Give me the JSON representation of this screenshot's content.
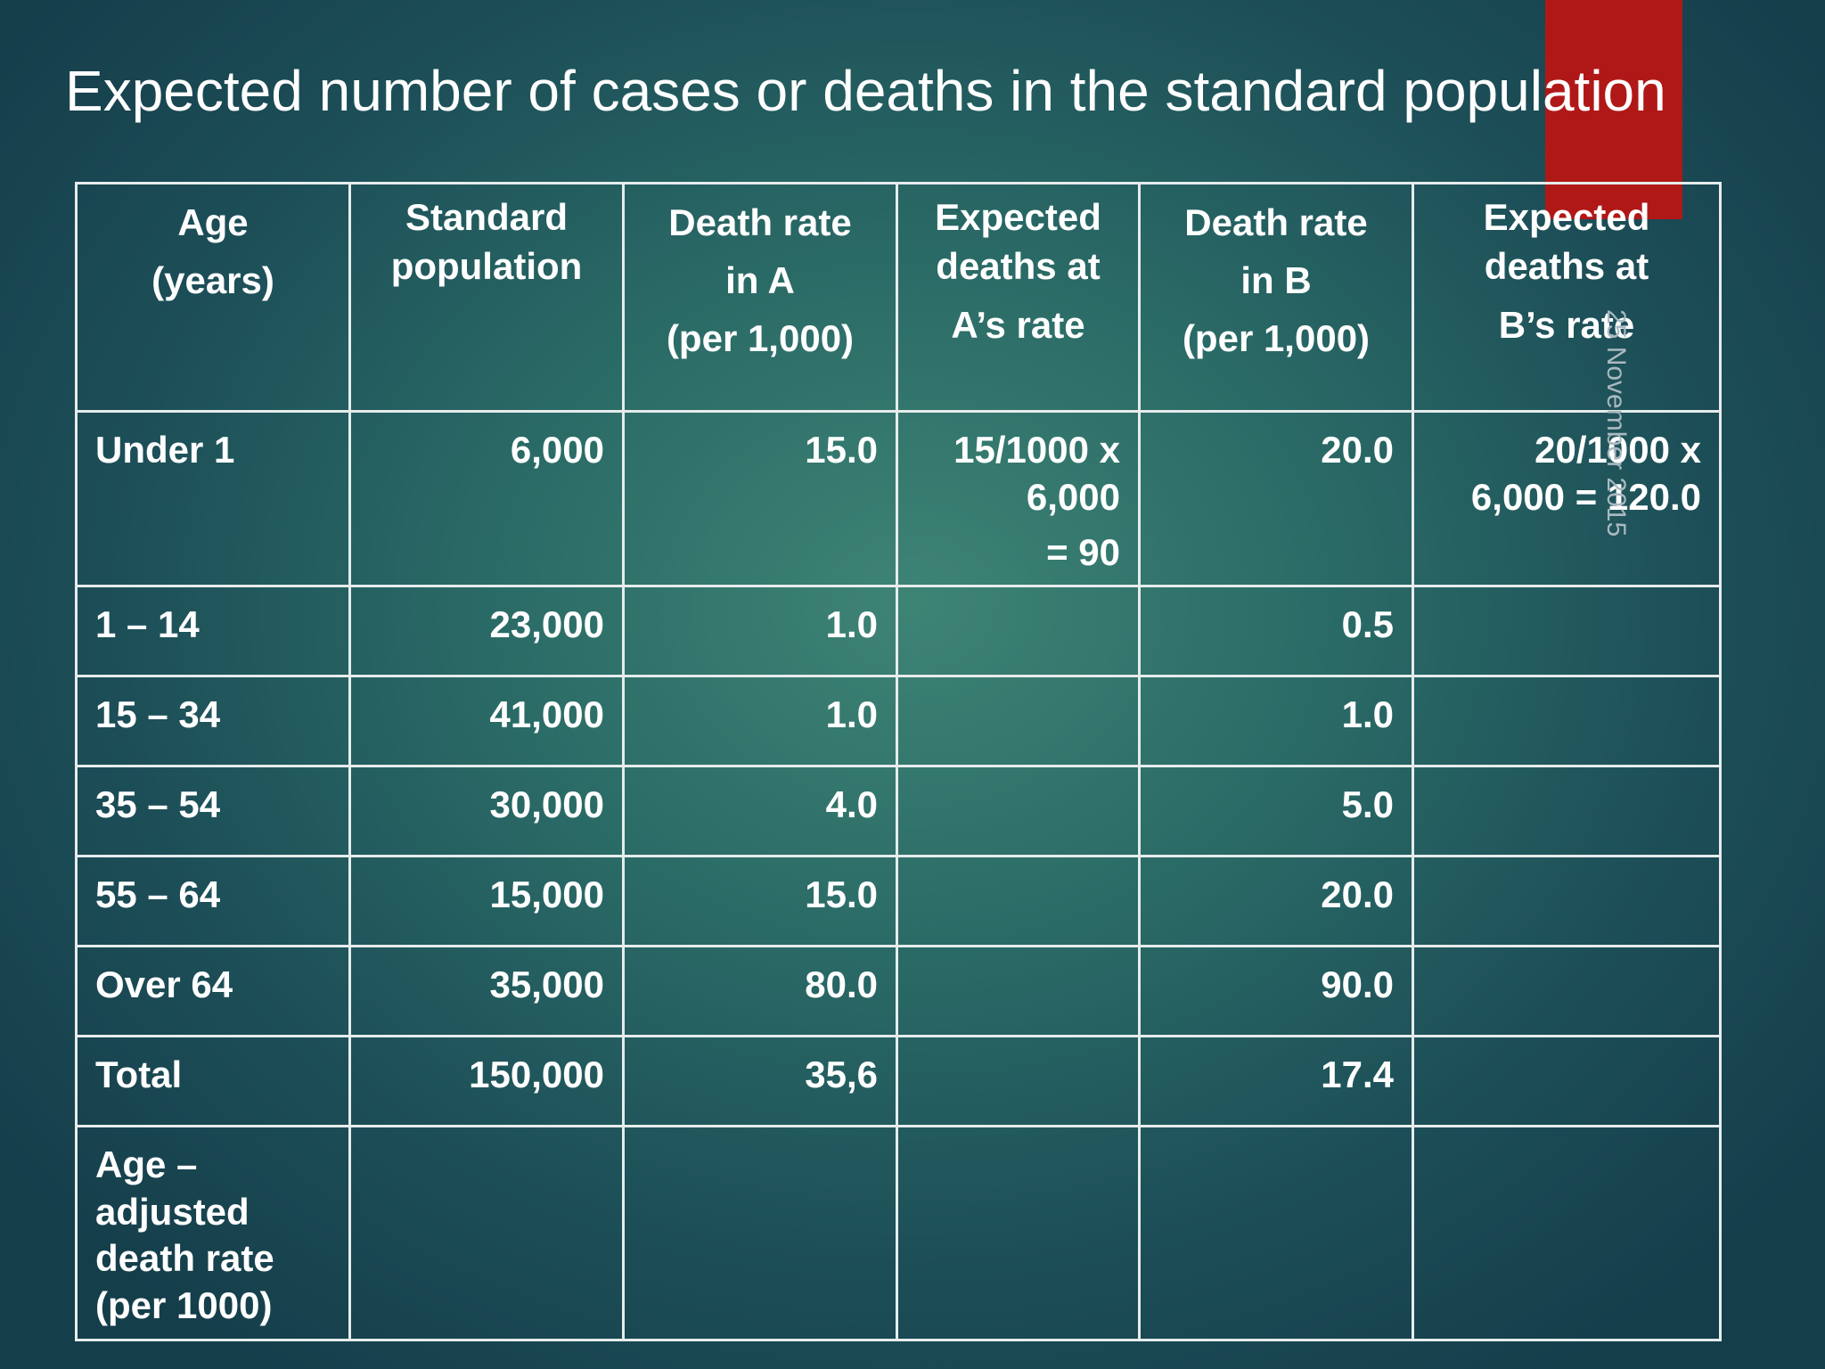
{
  "slide": {
    "title": "Expected number of cases or deaths in the standard population",
    "date_stamp": "25 November 2015"
  },
  "table": {
    "headers": [
      [
        "Age",
        "(years)"
      ],
      [
        "Standard",
        "population"
      ],
      [
        "Death rate",
        "in A",
        "(per 1,000)"
      ],
      [
        "Expected",
        "deaths at",
        "A’s rate"
      ],
      [
        "Death rate",
        "in B",
        "(per 1,000)"
      ],
      [
        "Expected",
        "deaths at",
        "B’s rate"
      ]
    ],
    "rows": [
      {
        "age": "Under 1",
        "population": "6,000",
        "rate_a": "15.0",
        "expected_a": [
          "15/1000 x",
          "6,000",
          "= 90"
        ],
        "rate_b": "20.0",
        "expected_b": [
          "20/1000 x",
          "6,000 = 120.0"
        ]
      },
      {
        "age": "1 – 14",
        "population": "23,000",
        "rate_a": "1.0",
        "expected_a": [],
        "rate_b": "0.5",
        "expected_b": []
      },
      {
        "age": "15 – 34",
        "population": "41,000",
        "rate_a": "1.0",
        "expected_a": [],
        "rate_b": "1.0",
        "expected_b": []
      },
      {
        "age": "35 – 54",
        "population": "30,000",
        "rate_a": "4.0",
        "expected_a": [],
        "rate_b": "5.0",
        "expected_b": []
      },
      {
        "age": "55 – 64",
        "population": "15,000",
        "rate_a": "15.0",
        "expected_a": [],
        "rate_b": "20.0",
        "expected_b": []
      },
      {
        "age": "Over 64",
        "population": "35,000",
        "rate_a": "80.0",
        "expected_a": [],
        "rate_b": "90.0",
        "expected_b": []
      },
      {
        "age": "Total",
        "population": "150,000",
        "rate_a": "35,6",
        "expected_a": [],
        "rate_b": "17.4",
        "expected_b": []
      }
    ],
    "adjusted_row": {
      "label": [
        "Age –",
        "adjusted",
        "death rate",
        "(per 1000)"
      ]
    }
  }
}
